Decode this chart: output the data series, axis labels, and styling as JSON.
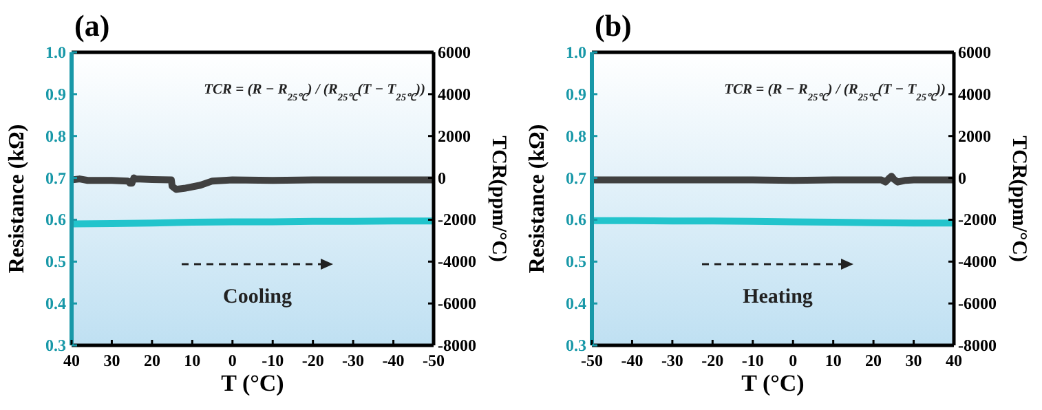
{
  "chart_data": [
    {
      "type": "line",
      "title": "(a)",
      "xlabel": "T (°C)",
      "ylabel": "Resistance (kΩ)",
      "y2label": "TCR(ppm/°C)",
      "annotations": [
        "TCR = (R − R$_{25℃}$) / (R$_{25℃}$(T − T$_{25℃}$))",
        "Cooling"
      ],
      "xlim": [
        40,
        -50
      ],
      "xticks": [
        40,
        30,
        20,
        10,
        0,
        -10,
        -20,
        -30,
        -40,
        -50
      ],
      "ylim": [
        0.3,
        1.0
      ],
      "yticks": [
        0.3,
        0.4,
        0.5,
        0.6,
        0.7,
        0.8,
        0.9,
        {
          "value": 1,
          "label": "1.0"
        }
      ],
      "y2lim": [
        -8000,
        6000
      ],
      "y2ticks": [
        -8000,
        -6000,
        -4000,
        -2000,
        0,
        2000,
        4000,
        6000
      ],
      "grid": false,
      "line_style": "solid",
      "marker": "none",
      "series": [
        {
          "color": "#22c4cc",
          "x": [
            40,
            30,
            20,
            10,
            0,
            -10,
            -20,
            -30,
            -40,
            -50
          ],
          "values": [
            0.59,
            0.591,
            0.592,
            0.594,
            0.595,
            0.595,
            0.596,
            0.596,
            0.597,
            0.597
          ]
        },
        {
          "color": "#404040",
          "axis": "y2",
          "x": [
            40,
            38,
            36,
            30,
            26,
            25.5,
            25,
            24.5,
            24,
            20,
            15.2,
            15,
            14,
            12,
            8,
            5,
            0,
            -10,
            -20,
            -30,
            -40,
            -50
          ],
          "values": [
            -100,
            -50,
            -120,
            -120,
            -150,
            -250,
            -250,
            0,
            -50,
            -80,
            -100,
            -400,
            -550,
            -500,
            -350,
            -150,
            -100,
            -120,
            -100,
            -100,
            -100,
            -100
          ]
        }
      ]
    },
    {
      "type": "line",
      "title": "(b)",
      "xlabel": "T (°C)",
      "ylabel": "Resistance (kΩ)",
      "y2label": "TCR(ppm/°C)",
      "annotations": [
        "TCR = (R − R$_{25℃}$) / (R$_{25℃}$(T − T$_{25℃}$))",
        "Heating"
      ],
      "xlim": [
        -50,
        40
      ],
      "xticks": [
        -50,
        -40,
        -30,
        -20,
        -10,
        0,
        10,
        20,
        30,
        40
      ],
      "ylim": [
        0.3,
        1.0
      ],
      "yticks": [
        0.3,
        0.4,
        0.5,
        0.6,
        0.7,
        0.8,
        0.9,
        {
          "value": 1,
          "label": "1.0"
        }
      ],
      "y2lim": [
        -8000,
        6000
      ],
      "y2ticks": [
        -8000,
        -6000,
        -4000,
        -2000,
        0,
        2000,
        4000,
        6000
      ],
      "grid": false,
      "line_style": "solid",
      "marker": "none",
      "series": [
        {
          "color": "#22c4cc",
          "x": [
            -50,
            -40,
            -30,
            -20,
            -10,
            0,
            10,
            20,
            30,
            40
          ],
          "values": [
            0.598,
            0.598,
            0.597,
            0.597,
            0.596,
            0.595,
            0.594,
            0.593,
            0.592,
            0.592
          ]
        },
        {
          "color": "#404040",
          "axis": "y2",
          "x": [
            -50,
            -40,
            -30,
            -20,
            -10,
            0,
            10,
            20,
            22,
            23,
            24,
            24.5,
            25,
            26,
            28,
            30,
            40
          ],
          "values": [
            -100,
            -100,
            -100,
            -100,
            -100,
            -120,
            -100,
            -100,
            -100,
            -200,
            0,
            80,
            -50,
            -200,
            -120,
            -100,
            -100
          ]
        }
      ]
    }
  ]
}
